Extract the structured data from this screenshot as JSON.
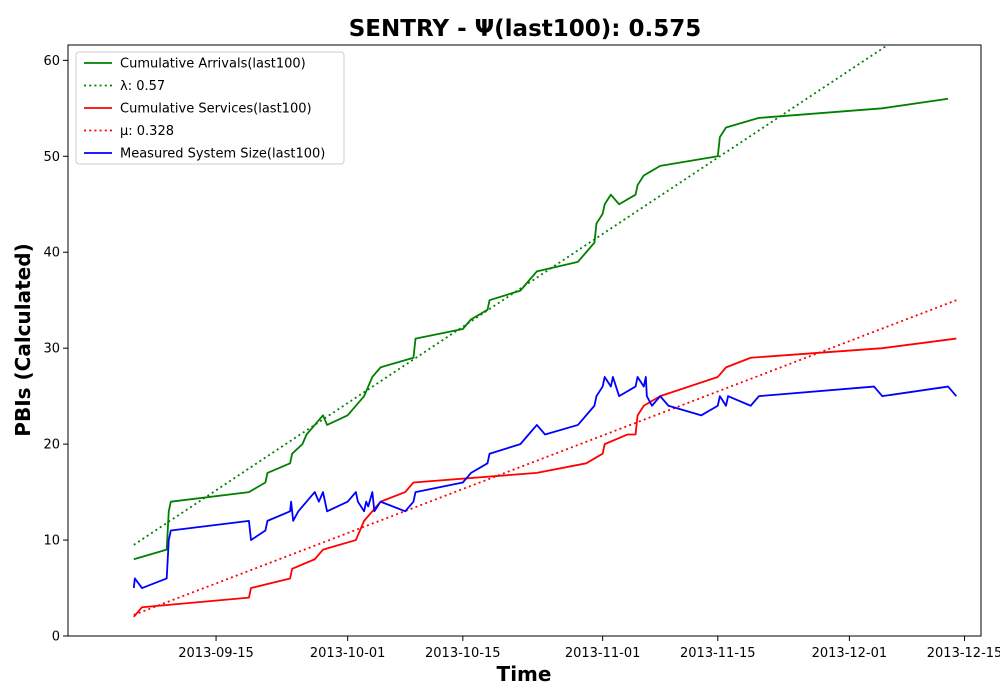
{
  "chart_data": {
    "type": "line",
    "title": "SENTRY -  Ψ(last100): 0.575",
    "xlabel": "Time",
    "ylabel": "PBIs (Calculated)",
    "xlim": [
      "2013-08-28",
      "2013-12-17"
    ],
    "ylim": [
      0,
      61.6
    ],
    "yticks": [
      0,
      10,
      20,
      30,
      40,
      50,
      60
    ],
    "xticks": [
      "2013-09-15",
      "2013-10-01",
      "2013-10-15",
      "2013-11-01",
      "2013-11-15",
      "2013-12-01",
      "2013-12-15"
    ],
    "grid": false,
    "legend_position": "top-left",
    "series": [
      {
        "name": "Cumulative Arrivals(last100)",
        "style": "solid",
        "color": "#008000",
        "points": [
          [
            "2013-09-05",
            8
          ],
          [
            "2013-09-09",
            9
          ],
          [
            "2013-09-09 06:00",
            13
          ],
          [
            "2013-09-09 12:00",
            14
          ],
          [
            "2013-09-19",
            15
          ],
          [
            "2013-09-21",
            16
          ],
          [
            "2013-09-21 06:00",
            17
          ],
          [
            "2013-09-24",
            18
          ],
          [
            "2013-09-24 06:00",
            19
          ],
          [
            "2013-09-25 12:00",
            20
          ],
          [
            "2013-09-26",
            21
          ],
          [
            "2013-09-27",
            22
          ],
          [
            "2013-09-28",
            23
          ],
          [
            "2013-09-28 12:00",
            22
          ],
          [
            "2013-10-01",
            23
          ],
          [
            "2013-10-03",
            25
          ],
          [
            "2013-10-03 12:00",
            26
          ],
          [
            "2013-10-04",
            27
          ],
          [
            "2013-10-05",
            28
          ],
          [
            "2013-10-09",
            29
          ],
          [
            "2013-10-09 06:00",
            31
          ],
          [
            "2013-10-15",
            32
          ],
          [
            "2013-10-16",
            33
          ],
          [
            "2013-10-18",
            34
          ],
          [
            "2013-10-18 06:00",
            35
          ],
          [
            "2013-10-22",
            36
          ],
          [
            "2013-10-23",
            37
          ],
          [
            "2013-10-24",
            38
          ],
          [
            "2013-10-29",
            39
          ],
          [
            "2013-10-31",
            41
          ],
          [
            "2013-10-31 06:00",
            43
          ],
          [
            "2013-11-01",
            44
          ],
          [
            "2013-11-01 06:00",
            45
          ],
          [
            "2013-11-02",
            46
          ],
          [
            "2013-11-03",
            45
          ],
          [
            "2013-11-05",
            46
          ],
          [
            "2013-11-05 06:00",
            47
          ],
          [
            "2013-11-06",
            48
          ],
          [
            "2013-11-07",
            48.5
          ],
          [
            "2013-11-08",
            49
          ],
          [
            "2013-11-15",
            50
          ],
          [
            "2013-11-15 06:00",
            52
          ],
          [
            "2013-11-16",
            53
          ],
          [
            "2013-11-20",
            54
          ],
          [
            "2013-12-05",
            55
          ],
          [
            "2013-12-13",
            56
          ]
        ]
      },
      {
        "name": "λ: 0.57",
        "style": "dotted",
        "color": "#008000",
        "points": [
          [
            "2013-09-05",
            9.5
          ],
          [
            "2013-12-09",
            63.5
          ]
        ]
      },
      {
        "name": "Cumulative Services(last100)",
        "style": "solid",
        "color": "#ff0000",
        "points": [
          [
            "2013-09-05",
            2
          ],
          [
            "2013-09-06",
            3
          ],
          [
            "2013-09-19",
            4
          ],
          [
            "2013-09-19 06:00",
            5
          ],
          [
            "2013-09-24",
            6
          ],
          [
            "2013-09-24 06:00",
            7
          ],
          [
            "2013-09-27",
            8
          ],
          [
            "2013-09-28",
            9
          ],
          [
            "2013-10-02",
            10
          ],
          [
            "2013-10-03",
            12
          ],
          [
            "2013-10-05",
            14
          ],
          [
            "2013-10-08",
            15
          ],
          [
            "2013-10-09",
            16
          ],
          [
            "2013-10-24",
            17
          ],
          [
            "2013-10-30",
            18
          ],
          [
            "2013-11-01",
            19
          ],
          [
            "2013-11-01 06:00",
            20
          ],
          [
            "2013-11-04",
            21
          ],
          [
            "2013-11-05",
            21
          ],
          [
            "2013-11-05 06:00",
            23
          ],
          [
            "2013-11-06",
            24
          ],
          [
            "2013-11-08",
            25
          ],
          [
            "2013-11-15",
            27
          ],
          [
            "2013-11-16",
            28
          ],
          [
            "2013-11-19",
            29
          ],
          [
            "2013-12-05",
            30
          ],
          [
            "2013-12-14",
            31
          ]
        ]
      },
      {
        "name": "μ: 0.328",
        "style": "dotted",
        "color": "#ff0000",
        "points": [
          [
            "2013-09-05",
            2.2
          ],
          [
            "2013-12-14",
            35
          ]
        ]
      },
      {
        "name": "Measured System Size(last100)",
        "style": "solid",
        "color": "#0000ff",
        "points": [
          [
            "2013-09-05",
            5
          ],
          [
            "2013-09-05 03:00",
            6
          ],
          [
            "2013-09-06",
            5
          ],
          [
            "2013-09-09",
            6
          ],
          [
            "2013-09-09 06:00",
            10
          ],
          [
            "2013-09-09 12:00",
            11
          ],
          [
            "2013-09-19",
            12
          ],
          [
            "2013-09-19 06:00",
            10
          ],
          [
            "2013-09-21",
            11
          ],
          [
            "2013-09-21 06:00",
            12
          ],
          [
            "2013-09-24",
            13
          ],
          [
            "2013-09-24 03:00",
            14
          ],
          [
            "2013-09-24 09:00",
            12
          ],
          [
            "2013-09-25",
            13
          ],
          [
            "2013-09-26",
            14
          ],
          [
            "2013-09-27",
            15
          ],
          [
            "2013-09-27 12:00",
            14
          ],
          [
            "2013-09-28",
            15
          ],
          [
            "2013-09-28 06:00",
            14
          ],
          [
            "2013-09-28 12:00",
            13
          ],
          [
            "2013-10-01",
            14
          ],
          [
            "2013-10-02",
            15
          ],
          [
            "2013-10-02 06:00",
            14
          ],
          [
            "2013-10-03",
            13
          ],
          [
            "2013-10-03 06:00",
            14
          ],
          [
            "2013-10-03 12:00",
            13.5
          ],
          [
            "2013-10-04",
            15
          ],
          [
            "2013-10-04 06:00",
            13
          ],
          [
            "2013-10-05",
            14
          ],
          [
            "2013-10-08",
            13
          ],
          [
            "2013-10-09",
            14
          ],
          [
            "2013-10-09 06:00",
            15
          ],
          [
            "2013-10-15",
            16
          ],
          [
            "2013-10-16",
            17
          ],
          [
            "2013-10-18",
            18
          ],
          [
            "2013-10-18 06:00",
            19
          ],
          [
            "2013-10-22",
            20
          ],
          [
            "2013-10-23",
            21
          ],
          [
            "2013-10-24",
            22
          ],
          [
            "2013-10-25",
            21
          ],
          [
            "2013-10-29",
            22
          ],
          [
            "2013-10-31",
            24
          ],
          [
            "2013-10-31 06:00",
            25
          ],
          [
            "2013-11-01",
            26
          ],
          [
            "2013-11-01 06:00",
            27
          ],
          [
            "2013-11-02",
            26
          ],
          [
            "2013-11-02 06:00",
            27
          ],
          [
            "2013-11-03",
            25
          ],
          [
            "2013-11-05",
            26
          ],
          [
            "2013-11-05 06:00",
            27
          ],
          [
            "2013-11-06",
            26
          ],
          [
            "2013-11-06 06:00",
            27
          ],
          [
            "2013-11-06 09:00",
            25
          ],
          [
            "2013-11-07",
            24
          ],
          [
            "2013-11-08",
            25
          ],
          [
            "2013-11-09",
            24
          ],
          [
            "2013-11-13",
            23
          ],
          [
            "2013-11-15",
            24
          ],
          [
            "2013-11-15 06:00",
            25
          ],
          [
            "2013-11-16",
            24
          ],
          [
            "2013-11-16 06:00",
            25
          ],
          [
            "2013-11-19",
            24
          ],
          [
            "2013-11-20",
            25
          ],
          [
            "2013-12-04",
            26
          ],
          [
            "2013-12-05",
            25
          ],
          [
            "2013-12-13",
            26
          ],
          [
            "2013-12-14",
            25
          ]
        ]
      }
    ]
  }
}
